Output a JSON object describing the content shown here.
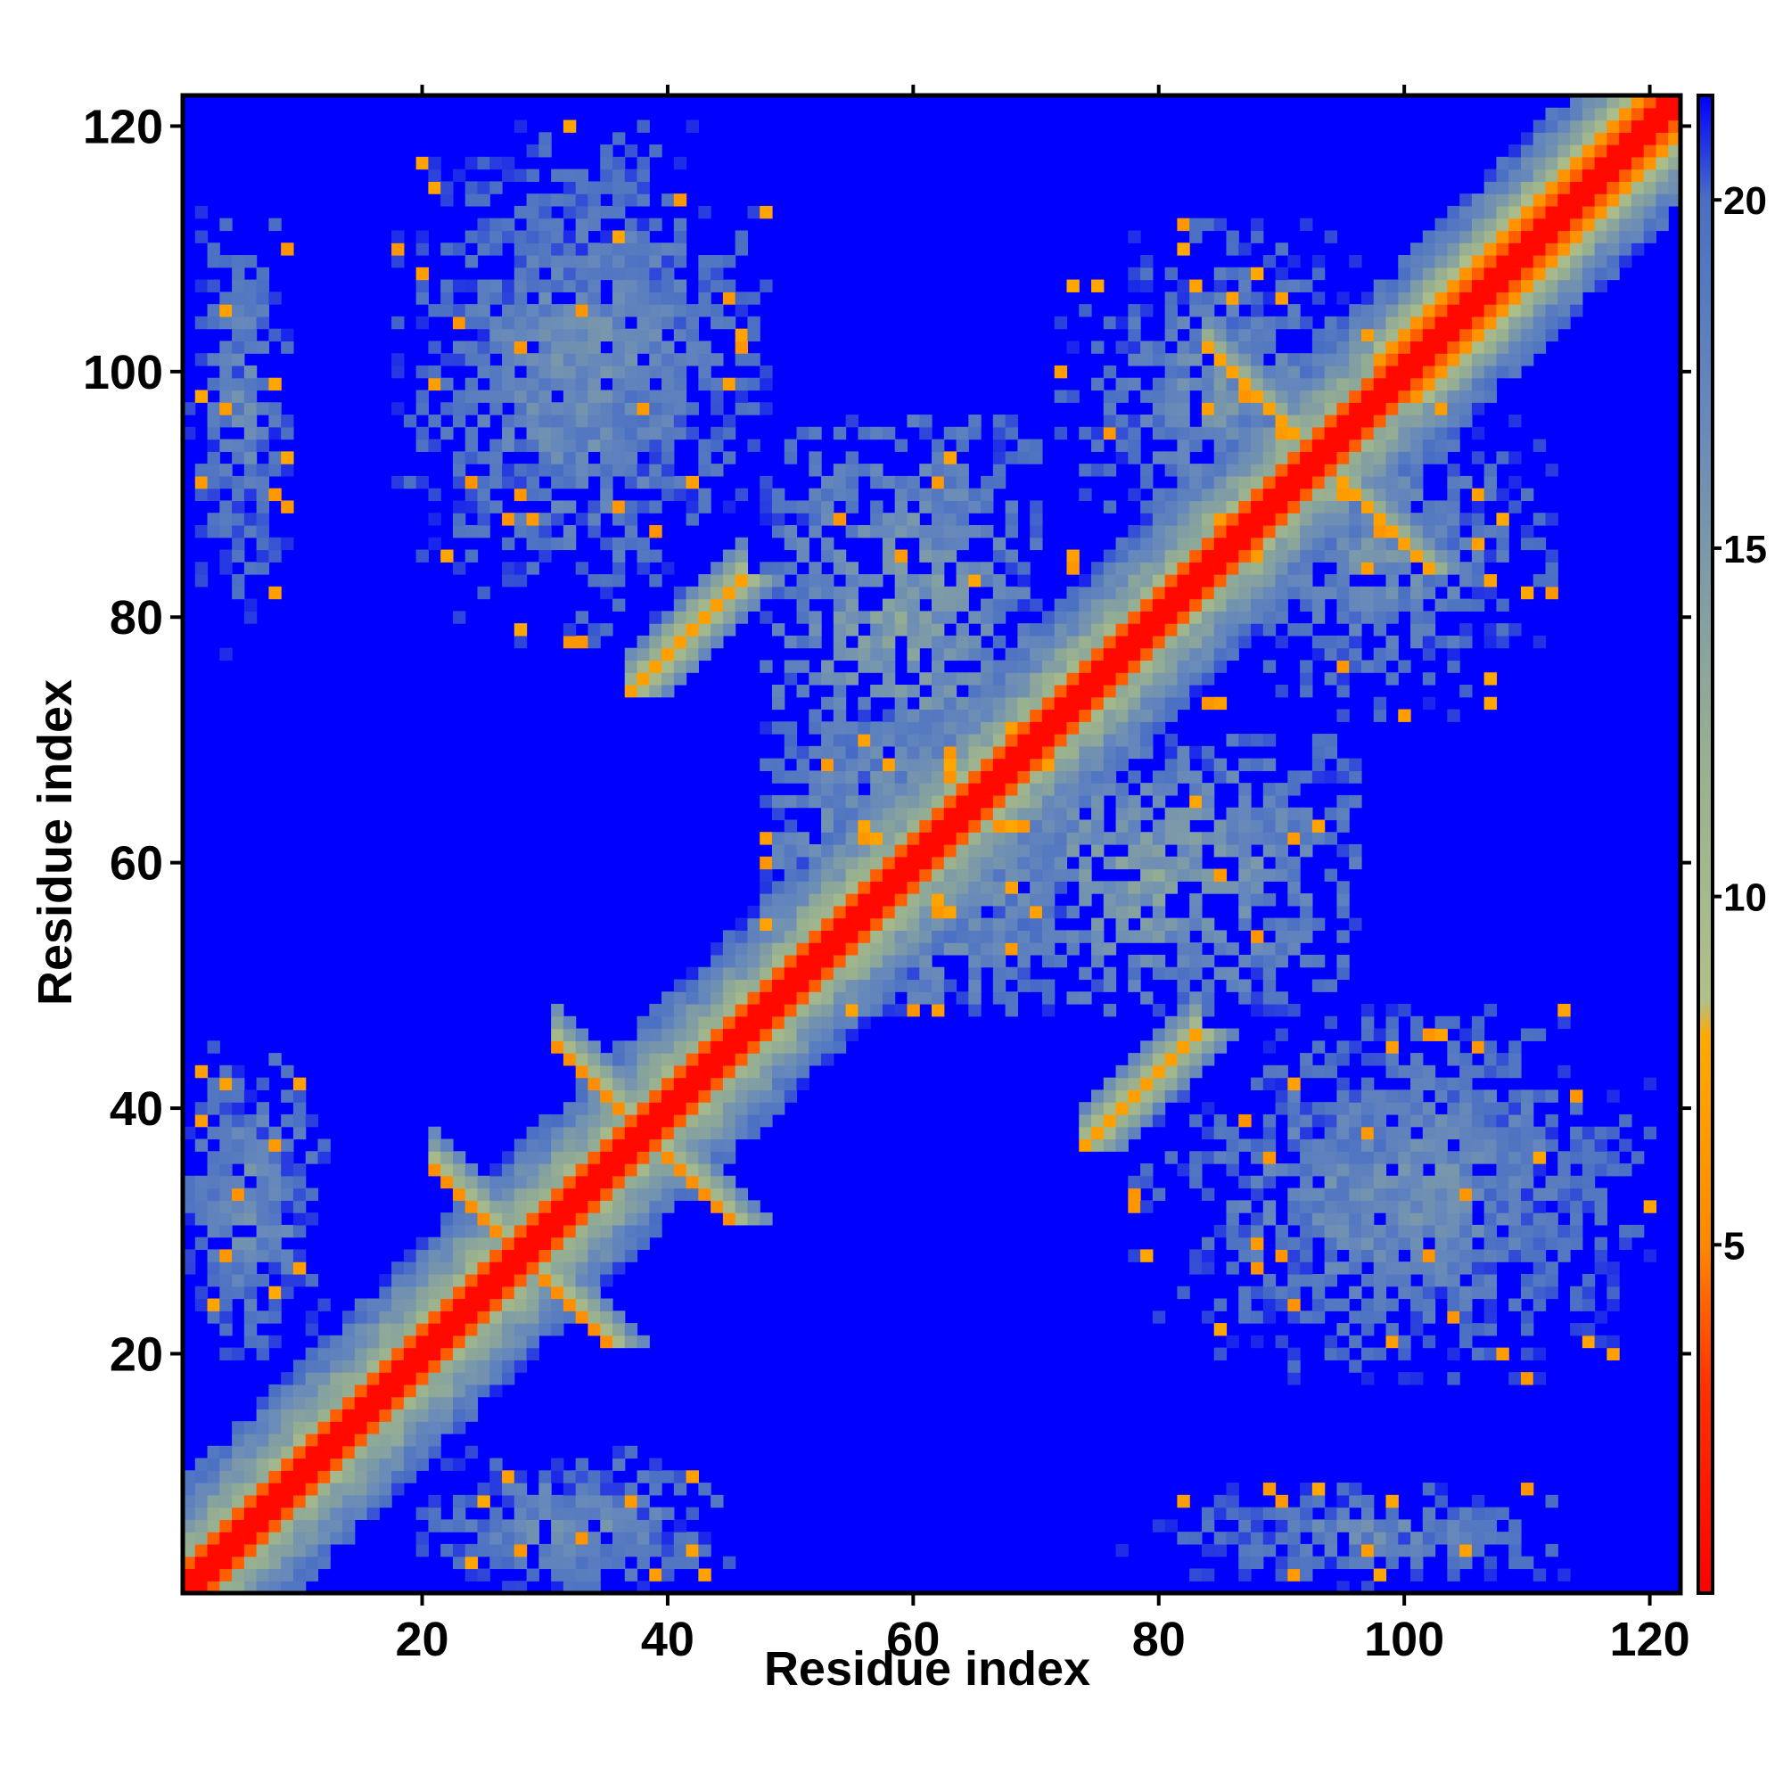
{
  "chart_data": {
    "type": "heatmap",
    "title": "",
    "xlabel": "Residue index",
    "ylabel": "Residue index",
    "n": 122,
    "xlim": [
      1,
      122
    ],
    "ylim": [
      1,
      122
    ],
    "x_ticks": [
      20,
      40,
      60,
      80,
      100,
      120
    ],
    "y_ticks": [
      20,
      40,
      60,
      80,
      100,
      120
    ],
    "grid": false,
    "colorbar": {
      "range": [
        0,
        21.5
      ],
      "ticks": [
        5,
        10,
        15,
        20
      ],
      "placement": "right",
      "stops": [
        {
          "value": 0,
          "color": "#ff0000"
        },
        {
          "value": 3,
          "color": "#ff3300"
        },
        {
          "value": 5,
          "color": "#ff8800"
        },
        {
          "value": 8,
          "color": "#ffaa00"
        },
        {
          "value": 8.5,
          "color": "#b0c088"
        },
        {
          "value": 12,
          "color": "#98b090"
        },
        {
          "value": 17,
          "color": "#6688bb"
        },
        {
          "value": 20,
          "color": "#4a6fc4"
        },
        {
          "value": 21.5,
          "color": "#0000ff"
        }
      ],
      "background_color": "#0000ff"
    },
    "cutoff": 21,
    "contact_regions": [
      {
        "name": "diagonal",
        "type": "diagonal"
      },
      {
        "name": "antiparallel-strands-a",
        "type": "anti",
        "sum": 56,
        "from": 21,
        "to": 35,
        "strength": 7
      },
      {
        "name": "antiparallel-strands-b",
        "type": "anti",
        "sum": 76,
        "from": 31,
        "to": 45,
        "strength": 7
      },
      {
        "name": "parallel-strands",
        "type": "parallel",
        "offset": 37,
        "from": 37,
        "to": 46,
        "strength": 7
      },
      {
        "name": "helix-cross",
        "type": "anti",
        "sum": 186,
        "from": 84,
        "to": 102,
        "strength": 9
      },
      {
        "name": "c-term-helices",
        "type": "parallel",
        "offset": 3,
        "from": 98,
        "to": 122,
        "strength": 6
      },
      {
        "name": "block-n-c",
        "type": "block",
        "x": [
          1,
          10
        ],
        "y": [
          76,
          118
        ],
        "strength": 15
      },
      {
        "name": "block-s1-c",
        "type": "block",
        "x": [
          20,
          48
        ],
        "y": [
          88,
          118
        ],
        "strength": 14
      },
      {
        "name": "block-c-left",
        "type": "block",
        "x": [
          72,
          100
        ],
        "y": [
          84,
          112
        ],
        "strength": 14
      },
      {
        "name": "block-low-right",
        "type": "block",
        "x": [
          78,
          120
        ],
        "y": [
          18,
          48
        ],
        "strength": 14
      },
      {
        "name": "block-bottom-right",
        "type": "block",
        "x": [
          76,
          122
        ],
        "y": [
          1,
          8
        ],
        "strength": 16
      },
      {
        "name": "block-bottom-mid",
        "type": "block",
        "x": [
          20,
          45
        ],
        "y": [
          1,
          10
        ],
        "strength": 14
      },
      {
        "name": "block-n-left",
        "type": "block",
        "x": [
          1,
          12
        ],
        "y": [
          20,
          46
        ],
        "strength": 14
      },
      {
        "name": "block-center",
        "type": "block",
        "x": [
          48,
          72
        ],
        "y": [
          52,
          72
        ],
        "strength": 12
      },
      {
        "name": "block-center-r",
        "type": "block",
        "x": [
          64,
          96
        ],
        "y": [
          48,
          70
        ],
        "strength": 12
      }
    ]
  }
}
